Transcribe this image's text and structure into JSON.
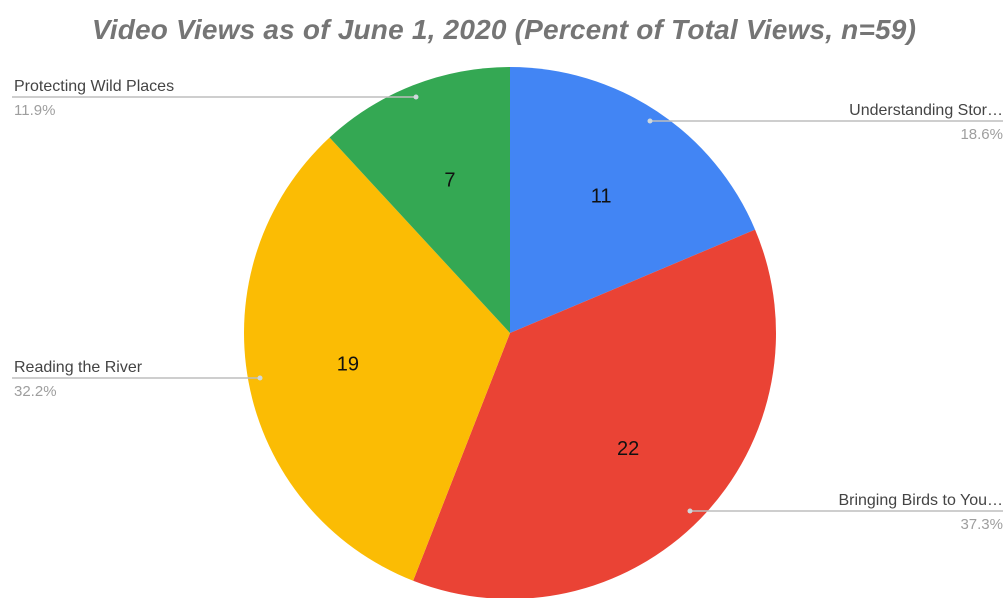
{
  "chart_data": {
    "type": "pie",
    "title": "Video Views as of June 1, 2020 (Percent of Total Views, n=59)",
    "total": 59,
    "slices": [
      {
        "label": "Understanding Stor…",
        "value": 11,
        "value_label": "11",
        "percent_label": "18.6%",
        "color": "#4285f4"
      },
      {
        "label": "Bringing Birds to You…",
        "value": 22,
        "value_label": "22",
        "percent_label": "37.3%",
        "color": "#ea4335"
      },
      {
        "label": "Reading the River",
        "value": 19,
        "value_label": "19",
        "percent_label": "32.2%",
        "color": "#fbbc04"
      },
      {
        "label": "Protecting Wild Places",
        "value": 7,
        "value_label": "7",
        "percent_label": "11.9%",
        "color": "#34a853"
      }
    ],
    "legend": "callout-labels",
    "start_angle": "top",
    "direction": "clockwise"
  }
}
